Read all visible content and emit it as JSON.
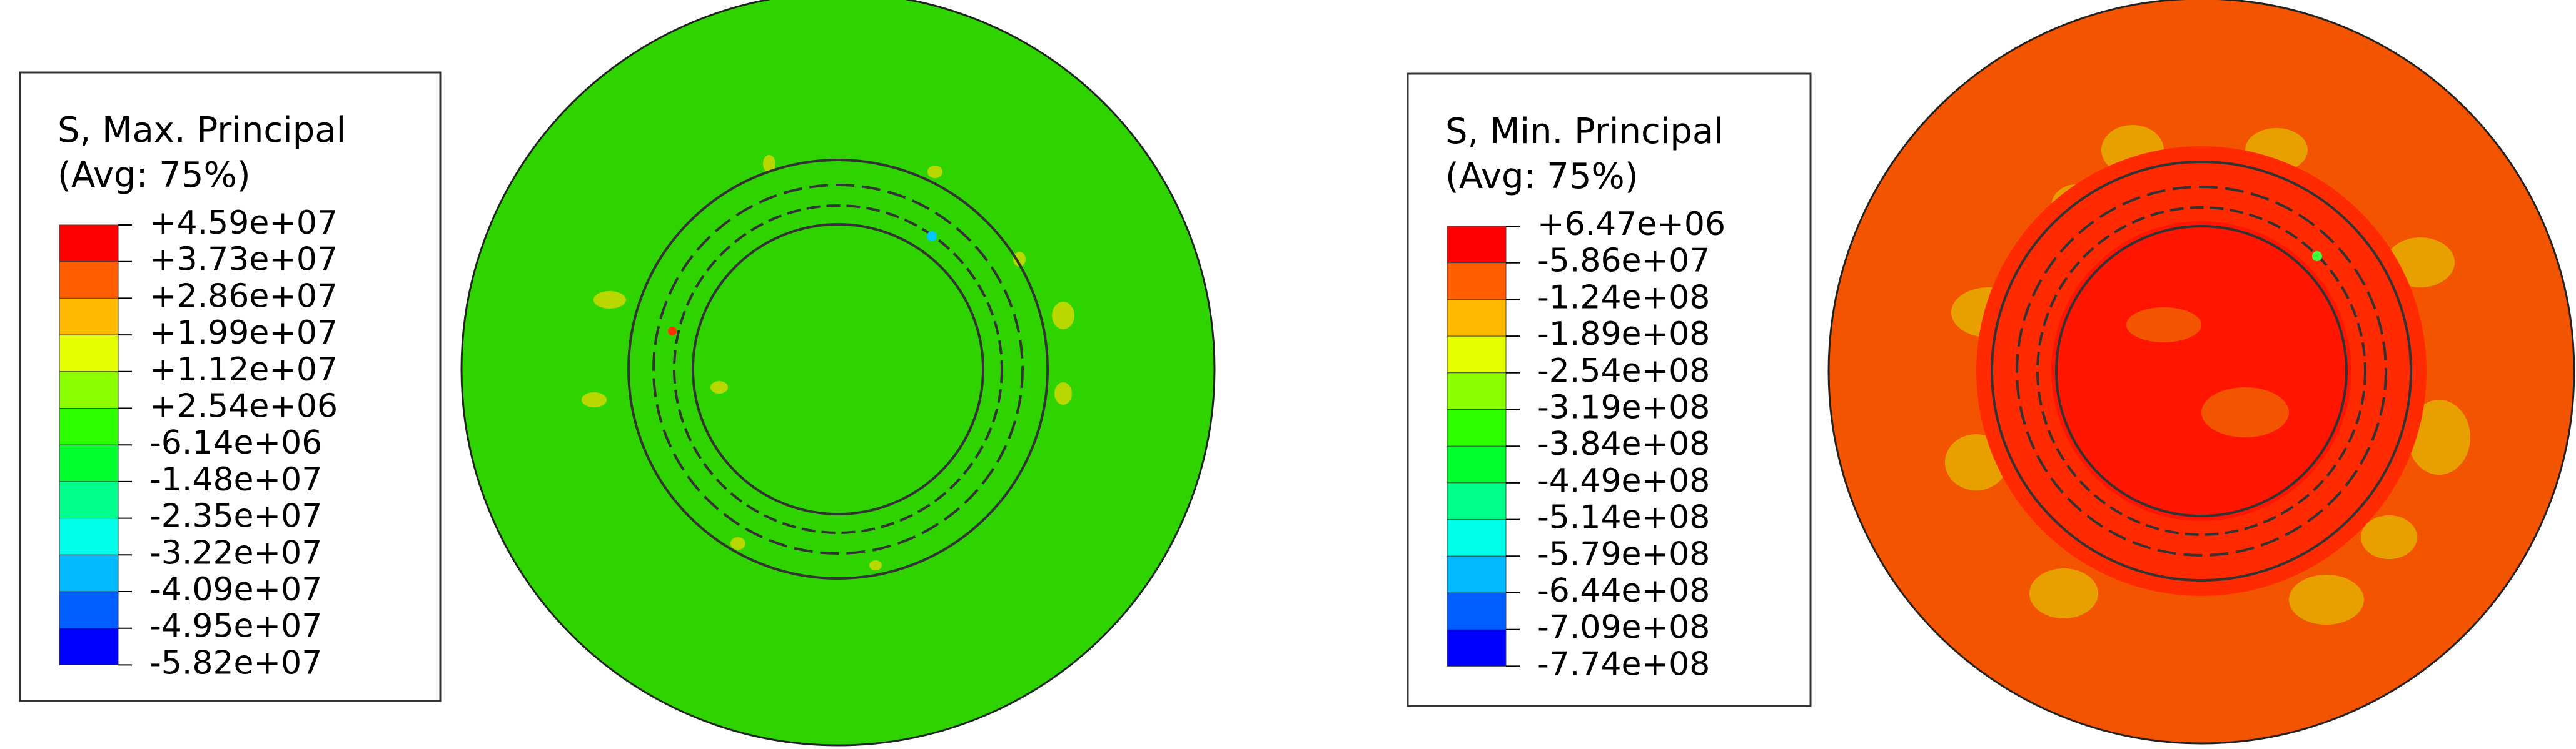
{
  "panels": [
    {
      "legend": {
        "title": "S, Max. Principal",
        "subtitle": "(Avg: 75%)",
        "labels": [
          "+4.59e+07",
          "+3.73e+07",
          "+2.86e+07",
          "+1.99e+07",
          "+1.12e+07",
          "+2.54e+06",
          "-6.14e+06",
          "-1.48e+07",
          "-2.35e+07",
          "-3.22e+07",
          "-4.09e+07",
          "-4.95e+07",
          "-5.82e+07"
        ]
      }
    },
    {
      "legend": {
        "title": "S, Min. Principal",
        "subtitle": "(Avg: 75%)",
        "labels": [
          "+6.47e+06",
          "-5.86e+07",
          "-1.24e+08",
          "-1.89e+08",
          "-2.54e+08",
          "-3.19e+08",
          "-3.84e+08",
          "-4.49e+08",
          "-5.14e+08",
          "-5.79e+08",
          "-6.44e+08",
          "-7.09e+08",
          "-7.74e+08"
        ]
      }
    }
  ]
}
